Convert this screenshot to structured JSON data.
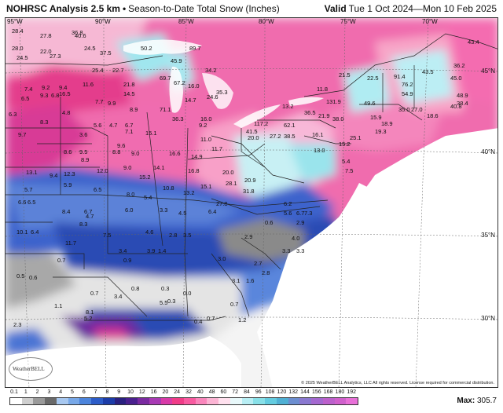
{
  "header": {
    "title": "NOHRSC Analysis 2.5 km",
    "separator": "•",
    "subtitle": "Season-to-Date Total Snow (Inches)",
    "valid_label": "Valid",
    "valid_range": "Tue 1 Oct 2024—Mon 10 Feb 2025"
  },
  "map": {
    "longitudes": [
      "95°W",
      "90°W",
      "85°W",
      "80°W",
      "75°W",
      "70°W"
    ],
    "latitudes": [
      "45°N",
      "40°N",
      "35°N",
      "30°N"
    ],
    "logo_text": "WeatherBELL",
    "copyright": "© 2025 WeatherBELL Analytics, LLC All rights reserved. License required for commercial distribution.",
    "snow_values": [
      "28.4",
      "27.8",
      "36.8",
      "40.6",
      "28.0",
      "22.0",
      "24.5",
      "27.3",
      "24.5",
      "37.5",
      "50.2",
      "89.7",
      "45.9",
      "25.4",
      "22.7",
      "69.7",
      "34.2",
      "67.2",
      "16.0",
      "11.6",
      "21.8",
      "7.4",
      "9.2",
      "9.4",
      "16.5",
      "9.3",
      "6.8",
      "14.5",
      "24.6",
      "14.7",
      "35.3",
      "6.5",
      "7.7",
      "9.9",
      "4.8",
      "8.9",
      "71.1",
      "36.3",
      "6.3",
      "5.6",
      "4.7",
      "6.7",
      "16.0",
      "9.2",
      "8.3",
      "7.1",
      "15.1",
      "11.0",
      "9.7",
      "3.6",
      "9.6",
      "16.6",
      "11.7",
      "8.6",
      "9.5",
      "8.8",
      "8.9",
      "9.0",
      "14.9",
      "14.1",
      "13.1",
      "9.4",
      "12.3",
      "12.0",
      "9.0",
      "16.8",
      "15.2",
      "10.8",
      "15.1",
      "13.2",
      "5.9",
      "5.7",
      "6.5",
      "8.0",
      "5.4",
      "6.6",
      "6.5",
      "8.4",
      "6.7",
      "6.0",
      "3.3",
      "4.5",
      "6.4",
      "4.7",
      "8.3",
      "10.1",
      "6.4",
      "7.5",
      "4.6",
      "2.8",
      "3.5",
      "11.7",
      "3.4",
      "3.9",
      "1.4",
      "0.7",
      "0.9",
      "0.5",
      "0.6",
      "0.8",
      "0.3",
      "0.7",
      "3.4",
      "1.1",
      "8.1",
      "5.2",
      "5.5",
      "2.3",
      "0.4",
      "0.3",
      "0.0",
      "0.7",
      "117.2",
      "41.5",
      "62.1",
      "36.5",
      "21.9",
      "38.0",
      "49.6",
      "13.2",
      "11.8",
      "131.9",
      "20.0",
      "27.2",
      "38.5",
      "16.1",
      "13.0",
      "15.2",
      "25.1",
      "15.9",
      "18.9",
      "19.3",
      "35.0",
      "27.0",
      "54.9",
      "91.4",
      "76.2",
      "43.5",
      "36.2",
      "45.0",
      "48.9",
      "40.8",
      "38.4",
      "43.4",
      "22.5",
      "21.5",
      "18.6",
      "20.0",
      "28.1",
      "20.9",
      "31.8",
      "27.8",
      "5.4",
      "7.5",
      "6.2",
      "5.6",
      "6.7",
      "7.3",
      "2.9",
      "0.6",
      "2.9",
      "4.0",
      "3.3",
      "3.3",
      "3.0",
      "3.1",
      "1.6",
      "2.7",
      "2.8",
      "0.7",
      "1.2"
    ]
  },
  "legend": {
    "ticks": [
      "0.1",
      "1",
      "2",
      "3",
      "4",
      "5",
      "6",
      "7",
      "8",
      "9",
      "10",
      "12",
      "16",
      "20",
      "24",
      "32",
      "40",
      "48",
      "60",
      "72",
      "84",
      "96",
      "108",
      "120",
      "132",
      "144",
      "156",
      "168",
      "180",
      "192"
    ],
    "colors": [
      "#ffffff",
      "#cfcfcf",
      "#9a9a9a",
      "#6a6a6a",
      "#a8c8f0",
      "#78a8e8",
      "#4c84dc",
      "#2c5cc8",
      "#1c3ca8",
      "#2a2080",
      "#4a208e",
      "#7a2aa0",
      "#a83ab4",
      "#d83aa8",
      "#f03c88",
      "#f85aa0",
      "#fa86bc",
      "#fcb4d4",
      "#ffe0ee",
      "#e8f8fa",
      "#b8eef4",
      "#88e0e8",
      "#64cce0",
      "#50b0d4",
      "#6c8ed0",
      "#8a78d0",
      "#a468d0",
      "#bc60cc",
      "#d060cc",
      "#e870d8"
    ],
    "max_label": "Max:",
    "max_value": "305.7"
  }
}
